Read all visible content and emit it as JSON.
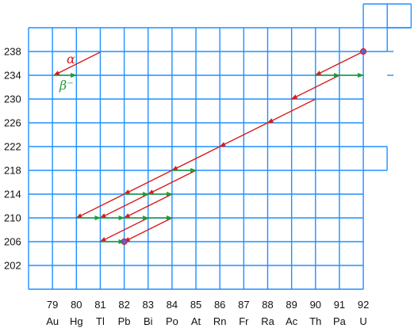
{
  "chart_data": {
    "type": "diagram",
    "x_axis": {
      "atomic_numbers": [
        "79",
        "80",
        "81",
        "82",
        "83",
        "84",
        "85",
        "86",
        "87",
        "88",
        "89",
        "90",
        "91",
        "92"
      ],
      "elements": [
        "Au",
        "Hg",
        "Tl",
        "Pb",
        "Bi",
        "Po",
        "At",
        "Rn",
        "Fr",
        "Ra",
        "Ac",
        "Th",
        "Pa",
        "U"
      ]
    },
    "y_axis": {
      "ticks": [
        "238",
        "234",
        "230",
        "226",
        "222",
        "218",
        "214",
        "210",
        "206",
        "202"
      ]
    },
    "legend": {
      "alpha": "α",
      "beta": "β⁻"
    },
    "colors": {
      "grid": "#1e90ff",
      "alpha": "#d81c1c",
      "beta": "#1e9c3a",
      "node": "#5a62d6"
    },
    "alpha_decays": [
      [
        92,
        238,
        90,
        234
      ],
      [
        91,
        234,
        89,
        230
      ],
      [
        90,
        230,
        88,
        226
      ],
      [
        88,
        226,
        86,
        222
      ],
      [
        86,
        222,
        84,
        218
      ],
      [
        85,
        218,
        83,
        214
      ],
      [
        84,
        218,
        82,
        214
      ],
      [
        84,
        214,
        82,
        210
      ],
      [
        83,
        214,
        81,
        210
      ],
      [
        82,
        214,
        80,
        210
      ],
      [
        84,
        210,
        82,
        206
      ],
      [
        83,
        210,
        81,
        206
      ]
    ],
    "beta_decays": [
      [
        90,
        234,
        91,
        234
      ],
      [
        91,
        234,
        92,
        234
      ],
      [
        84,
        218,
        85,
        218
      ],
      [
        82,
        214,
        83,
        214
      ],
      [
        83,
        214,
        84,
        214
      ],
      [
        80,
        210,
        81,
        210
      ],
      [
        81,
        210,
        82,
        210
      ],
      [
        82,
        210,
        83,
        210
      ],
      [
        83,
        210,
        84,
        210
      ],
      [
        81,
        206,
        82,
        206
      ]
    ],
    "nodes": [
      [
        92,
        238
      ],
      [
        82,
        206
      ]
    ]
  }
}
